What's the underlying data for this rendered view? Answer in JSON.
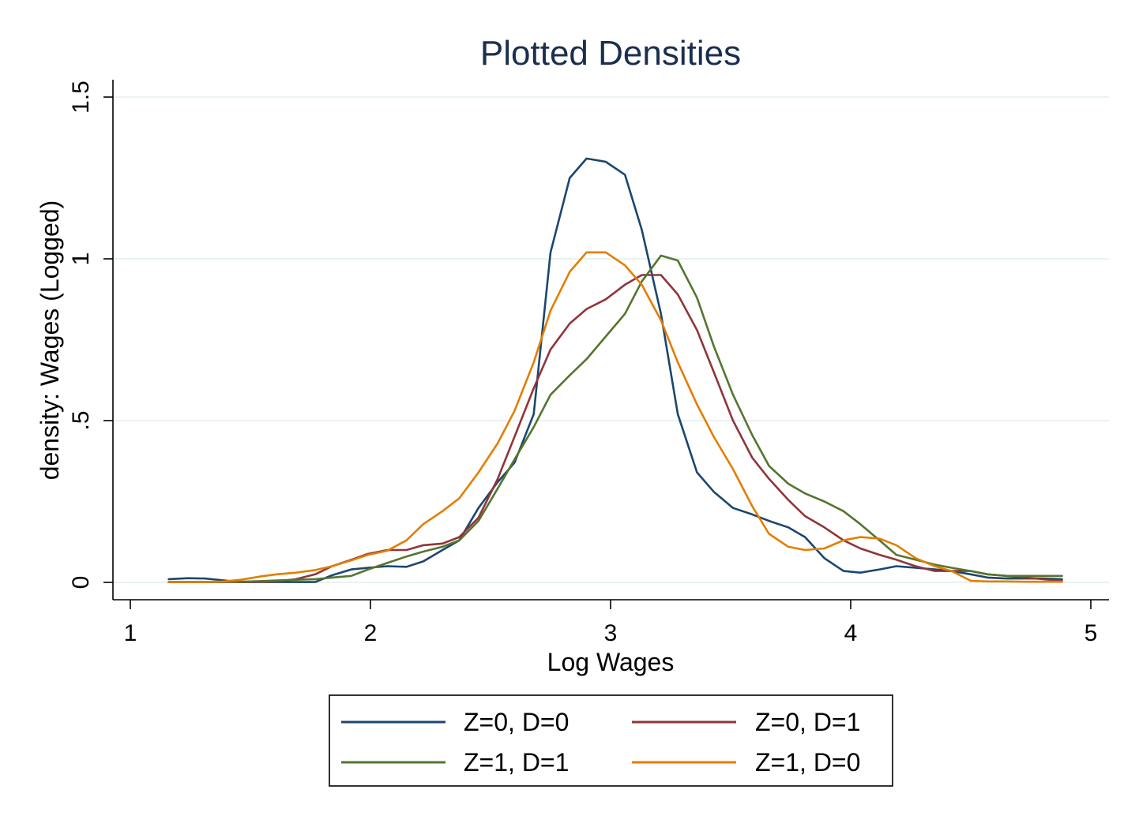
{
  "chart_data": {
    "type": "line",
    "title": "Plotted Densities",
    "xlabel": "Log Wages",
    "ylabel": "density: Wages (Logged)",
    "xlim": [
      1,
      5
    ],
    "ylim": [
      0,
      1.5
    ],
    "x_ticks": [
      {
        "value": 1,
        "label": "1"
      },
      {
        "value": 2,
        "label": "2"
      },
      {
        "value": 3,
        "label": "3"
      },
      {
        "value": 4,
        "label": "4"
      },
      {
        "value": 5,
        "label": "5"
      }
    ],
    "y_ticks": [
      {
        "value": 0,
        "label": "0"
      },
      {
        "value": 0.5,
        "label": ".5"
      },
      {
        "value": 1,
        "label": "1"
      },
      {
        "value": 1.5,
        "label": "1.5"
      }
    ],
    "grid": "horizontal",
    "legend_position": "bottom",
    "x": [
      1.16,
      1.24,
      1.31,
      1.39,
      1.46,
      1.54,
      1.61,
      1.69,
      1.77,
      1.84,
      1.92,
      1.99,
      2.07,
      2.15,
      2.22,
      2.3,
      2.37,
      2.45,
      2.53,
      2.6,
      2.68,
      2.75,
      2.83,
      2.9,
      2.98,
      3.06,
      3.13,
      3.21,
      3.28,
      3.36,
      3.43,
      3.51,
      3.59,
      3.66,
      3.74,
      3.81,
      3.89,
      3.97,
      4.04,
      4.12,
      4.19,
      4.27,
      4.35,
      4.42,
      4.5,
      4.57,
      4.65,
      4.73,
      4.8,
      4.88
    ],
    "series": [
      {
        "name": "Z=0, D=0",
        "color": "#1a476f",
        "values": [
          0.01,
          0.013,
          0.012,
          0.006,
          0.001,
          0.001,
          0.001,
          0.001,
          0.001,
          0.022,
          0.04,
          0.045,
          0.05,
          0.048,
          0.065,
          0.1,
          0.13,
          0.23,
          0.31,
          0.37,
          0.52,
          1.02,
          1.25,
          1.31,
          1.3,
          1.26,
          1.09,
          0.83,
          0.52,
          0.34,
          0.28,
          0.23,
          0.21,
          0.19,
          0.17,
          0.14,
          0.075,
          0.035,
          0.03,
          0.04,
          0.05,
          0.045,
          0.04,
          0.035,
          0.025,
          0.015,
          0.012,
          0.012,
          0.012,
          0.01
        ]
      },
      {
        "name": "Z=0, D=1",
        "color": "#90353b",
        "values": [
          0.001,
          0.001,
          0.001,
          0.001,
          0.001,
          0.002,
          0.003,
          0.01,
          0.025,
          0.05,
          0.07,
          0.088,
          0.1,
          0.1,
          0.115,
          0.12,
          0.14,
          0.2,
          0.32,
          0.45,
          0.6,
          0.72,
          0.8,
          0.845,
          0.875,
          0.92,
          0.95,
          0.95,
          0.89,
          0.78,
          0.65,
          0.5,
          0.385,
          0.32,
          0.255,
          0.205,
          0.17,
          0.13,
          0.105,
          0.085,
          0.07,
          0.05,
          0.035,
          0.035,
          0.035,
          0.025,
          0.02,
          0.015,
          0.01,
          0.005
        ]
      },
      {
        "name": "Z=1, D=1",
        "color": "#55752f",
        "values": [
          0.001,
          0.001,
          0.001,
          0.002,
          0.002,
          0.004,
          0.006,
          0.008,
          0.01,
          0.015,
          0.02,
          0.04,
          0.06,
          0.08,
          0.095,
          0.11,
          0.13,
          0.19,
          0.29,
          0.38,
          0.48,
          0.58,
          0.64,
          0.69,
          0.76,
          0.83,
          0.93,
          1.01,
          0.995,
          0.88,
          0.73,
          0.58,
          0.455,
          0.36,
          0.305,
          0.275,
          0.25,
          0.22,
          0.18,
          0.13,
          0.085,
          0.07,
          0.055,
          0.045,
          0.035,
          0.025,
          0.02,
          0.02,
          0.02,
          0.02
        ]
      },
      {
        "name": "Z=1, D=0",
        "color": "#e37e00",
        "values": [
          0.001,
          0.001,
          0.001,
          0.003,
          0.008,
          0.018,
          0.025,
          0.03,
          0.038,
          0.05,
          0.068,
          0.085,
          0.098,
          0.13,
          0.18,
          0.22,
          0.26,
          0.34,
          0.43,
          0.53,
          0.68,
          0.84,
          0.96,
          1.02,
          1.02,
          0.98,
          0.92,
          0.81,
          0.68,
          0.55,
          0.45,
          0.35,
          0.235,
          0.15,
          0.11,
          0.1,
          0.105,
          0.13,
          0.14,
          0.135,
          0.115,
          0.075,
          0.05,
          0.035,
          0.005,
          0.003,
          0.003,
          0.002,
          0.002,
          0.002
        ]
      }
    ]
  }
}
